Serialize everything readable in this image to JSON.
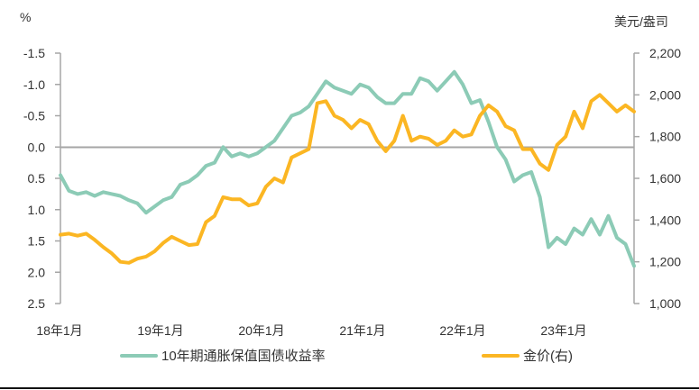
{
  "chart_data": {
    "type": "line",
    "title": "",
    "left_axis": {
      "unit_label": "%",
      "inverted": true,
      "range": [
        -1.5,
        2.5
      ],
      "ticks": [
        "-1.5",
        "-1.0",
        "-0.5",
        "0.0",
        "0.5",
        "1.0",
        "1.5",
        "2.0",
        "2.5"
      ]
    },
    "right_axis": {
      "unit_label": "美元/盎司",
      "range": [
        1000,
        2200
      ],
      "ticks": [
        "2,200",
        "2,000",
        "1,800",
        "1,600",
        "1,400",
        "1,200",
        "1,000"
      ]
    },
    "x_tick_labels": [
      "18年1月",
      "19年1月",
      "20年1月",
      "21年1月",
      "22年1月",
      "23年1月"
    ],
    "x": [
      "2018-01",
      "2018-02",
      "2018-03",
      "2018-04",
      "2018-05",
      "2018-06",
      "2018-07",
      "2018-08",
      "2018-09",
      "2018-10",
      "2018-11",
      "2018-12",
      "2019-01",
      "2019-02",
      "2019-03",
      "2019-04",
      "2019-05",
      "2019-06",
      "2019-07",
      "2019-08",
      "2019-09",
      "2019-10",
      "2019-11",
      "2019-12",
      "2020-01",
      "2020-02",
      "2020-03",
      "2020-04",
      "2020-05",
      "2020-06",
      "2020-07",
      "2020-08",
      "2020-09",
      "2020-10",
      "2020-11",
      "2020-12",
      "2021-01",
      "2021-02",
      "2021-03",
      "2021-04",
      "2021-05",
      "2021-06",
      "2021-07",
      "2021-08",
      "2021-09",
      "2021-10",
      "2021-11",
      "2021-12",
      "2022-01",
      "2022-02",
      "2022-03",
      "2022-04",
      "2022-05",
      "2022-06",
      "2022-07",
      "2022-08",
      "2022-09",
      "2022-10",
      "2022-11",
      "2022-12",
      "2023-01",
      "2023-02",
      "2023-03",
      "2023-04",
      "2023-05",
      "2023-06",
      "2023-07",
      "2023-08"
    ],
    "series": [
      {
        "name": "10年期通胀保值国债收益率",
        "axis": "left",
        "color": "#8ccbb6",
        "values": [
          0.45,
          0.7,
          0.75,
          0.72,
          0.78,
          0.72,
          0.75,
          0.78,
          0.85,
          0.9,
          1.05,
          0.95,
          0.85,
          0.8,
          0.6,
          0.55,
          0.45,
          0.3,
          0.25,
          0.0,
          0.15,
          0.1,
          0.15,
          0.1,
          0.0,
          -0.1,
          -0.3,
          -0.5,
          -0.55,
          -0.65,
          -0.85,
          -1.05,
          -0.95,
          -0.9,
          -0.85,
          -1.0,
          -0.95,
          -0.8,
          -0.7,
          -0.7,
          -0.85,
          -0.85,
          -1.1,
          -1.05,
          -0.9,
          -1.05,
          -1.2,
          -1.0,
          -0.7,
          -0.75,
          -0.4,
          0.0,
          0.2,
          0.55,
          0.45,
          0.4,
          0.8,
          1.6,
          1.45,
          1.55,
          1.3,
          1.4,
          1.15,
          1.4,
          1.1,
          1.45,
          1.55,
          1.9
        ]
      },
      {
        "name": "金价(右)",
        "axis": "right",
        "color": "#fbb623",
        "values": [
          1330,
          1335,
          1325,
          1335,
          1305,
          1270,
          1240,
          1200,
          1195,
          1215,
          1225,
          1250,
          1290,
          1320,
          1300,
          1280,
          1285,
          1390,
          1420,
          1510,
          1500,
          1500,
          1470,
          1480,
          1560,
          1600,
          1580,
          1700,
          1720,
          1740,
          1960,
          1970,
          1900,
          1880,
          1840,
          1880,
          1860,
          1780,
          1730,
          1780,
          1900,
          1780,
          1800,
          1790,
          1760,
          1780,
          1830,
          1800,
          1810,
          1900,
          1950,
          1920,
          1850,
          1830,
          1740,
          1740,
          1670,
          1640,
          1760,
          1800,
          1920,
          1840,
          1970,
          2000,
          1960,
          1920,
          1950,
          1920
        ]
      }
    ],
    "zero_line": 0.0,
    "legend_position": "bottom",
    "grid": false
  },
  "legend": {
    "items": [
      {
        "label": "10年期通胀保值国债收益率",
        "color": "#8ccbb6"
      },
      {
        "label": "金价(右)",
        "color": "#fbb623"
      }
    ]
  }
}
